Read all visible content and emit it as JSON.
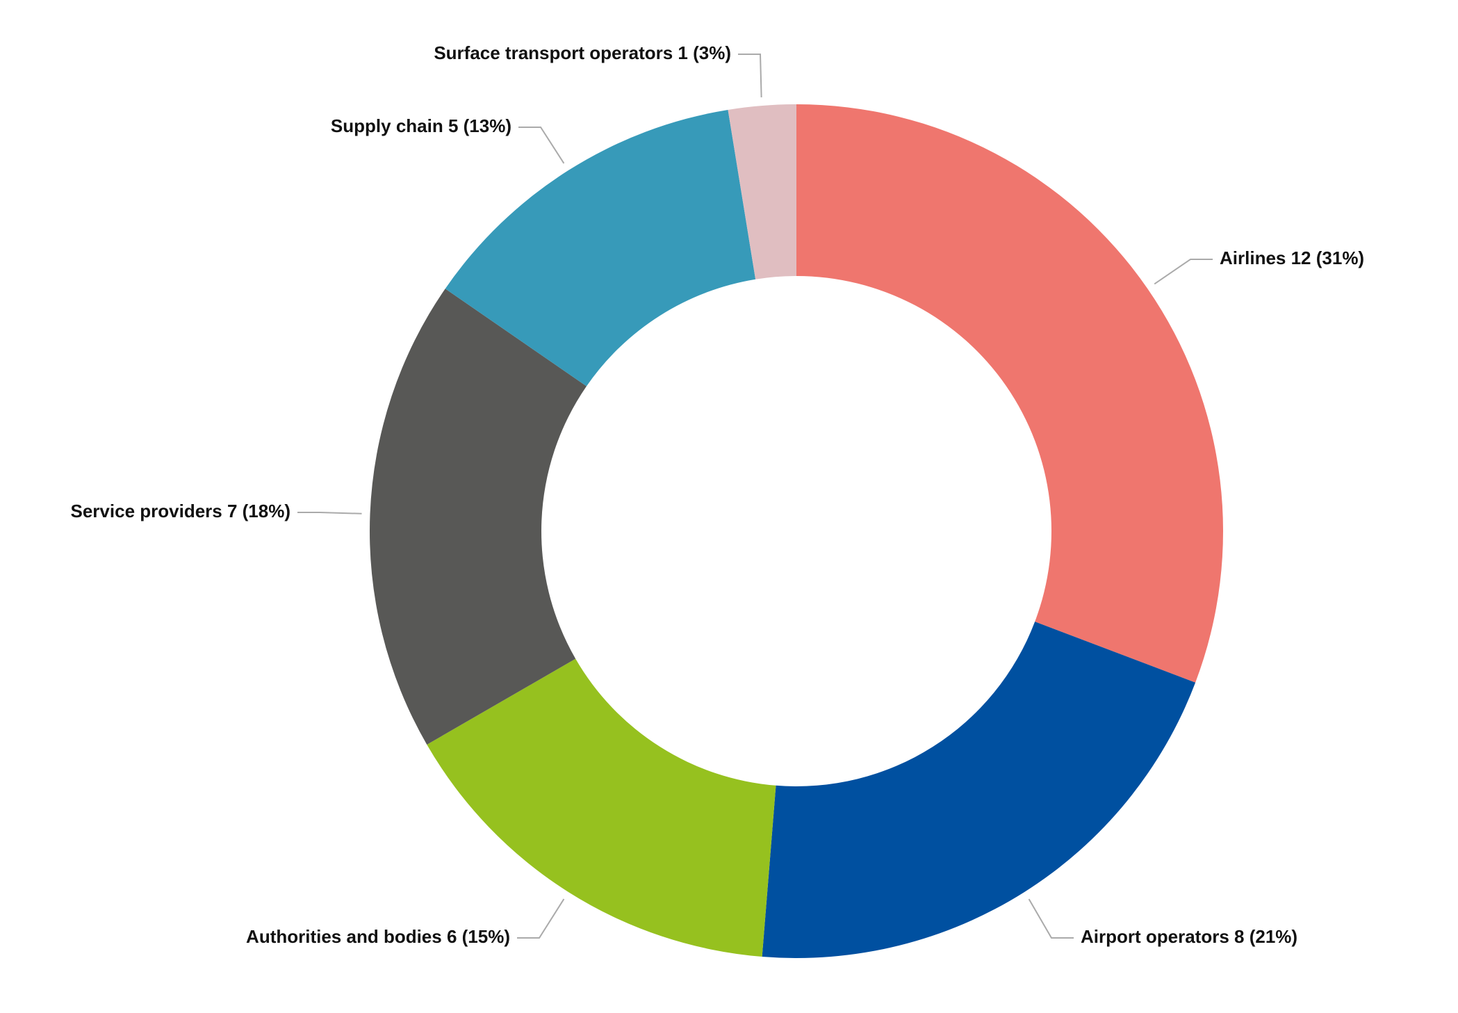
{
  "chart_data": {
    "type": "donut",
    "labels": [
      "Airlines 12 (31%)",
      "Airport operators 8 (21%)",
      "Authorities and bodies 6 (15%)",
      "Service providers 7 (18%)",
      "Supply chain 5 (13%)",
      "Surface transport operators 1 (3%)"
    ],
    "values": [
      12,
      8,
      6,
      7,
      5,
      1
    ],
    "colors": [
      "#ef766e",
      "#0050a0",
      "#96c11f",
      "#585856",
      "#379ab9",
      "#e0bec1"
    ]
  }
}
